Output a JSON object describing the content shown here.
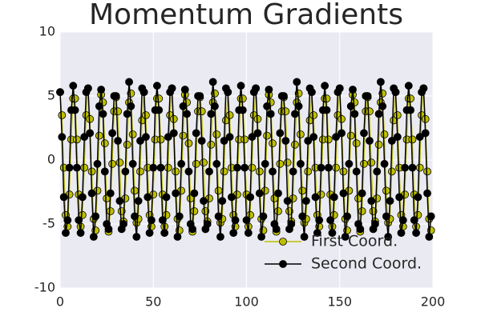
{
  "chart_data": {
    "type": "line",
    "title": "Momentum Gradients",
    "x": [
      0,
      1,
      2,
      3,
      4,
      5,
      6,
      7,
      8,
      9,
      10,
      11,
      12,
      13,
      14,
      15,
      16,
      17,
      18,
      19,
      20,
      21,
      22,
      23,
      24,
      25,
      26,
      27,
      28,
      29,
      30,
      31,
      32,
      33,
      34,
      35,
      36,
      37,
      38,
      39,
      40,
      41,
      42,
      43,
      44,
      45,
      46,
      47,
      48,
      49,
      50,
      51,
      52,
      53,
      54,
      55,
      56,
      57,
      58,
      59,
      60,
      61,
      62,
      63,
      64,
      65,
      66,
      67,
      68,
      69,
      70,
      71,
      72,
      73,
      74,
      75,
      76,
      77,
      78,
      79,
      80,
      81,
      82,
      83,
      84,
      85,
      86,
      87,
      88,
      89,
      90,
      91,
      92,
      93,
      94,
      95,
      96,
      97,
      98,
      99,
      100,
      101,
      102,
      103,
      104,
      105,
      106,
      107,
      108,
      109,
      110,
      111,
      112,
      113,
      114,
      115,
      116,
      117,
      118,
      119,
      120,
      121,
      122,
      123,
      124,
      125,
      126,
      127,
      128,
      129,
      130,
      131,
      132,
      133,
      134,
      135,
      136,
      137,
      138,
      139,
      140,
      141,
      142,
      143,
      144,
      145,
      146,
      147,
      148,
      149,
      150,
      151,
      152,
      153,
      154,
      155,
      156,
      157,
      158,
      159,
      160,
      161,
      162,
      163,
      164,
      165,
      166,
      167,
      168,
      169,
      170,
      171,
      172,
      173,
      174,
      175,
      176,
      177,
      178,
      179,
      180,
      181,
      182,
      183,
      184,
      185,
      186,
      187,
      188,
      189,
      190,
      191,
      192,
      193,
      194,
      195,
      196,
      197,
      198,
      199
    ],
    "series": [
      {
        "name": "First Coord.",
        "color": "#bfbf00",
        "values": [
          5.3,
          3.5,
          -0.6,
          -4.3,
          -5.2,
          -2.7,
          1.6,
          4.8,
          4.8,
          1.6,
          -2.7,
          -5.2,
          -4.3,
          -0.6,
          3.5,
          5.6,
          3.2,
          -0.9,
          -4.6,
          -5.5,
          -2.4,
          1.9,
          5.1,
          4.5,
          1.3,
          -3.0,
          -5.6,
          -4.0,
          -0.3,
          3.8,
          4.9,
          3.8,
          -0.2,
          -4.0,
          -4.8,
          -3.0,
          1.2,
          4.5,
          5.2,
          2.0,
          -2.4,
          -4.9,
          -4.6,
          -0.9,
          3.1,
          5.3,
          3.5,
          -0.6,
          -4.3,
          -5.2,
          -2.7,
          1.6,
          4.8,
          4.8,
          1.6,
          -2.7,
          -5.2,
          -4.3,
          -0.6,
          3.5,
          5.6,
          3.2,
          -0.9,
          -4.6,
          -5.5,
          -2.4,
          1.9,
          5.1,
          4.5,
          1.3,
          -3.0,
          -5.6,
          -4.0,
          -0.3,
          3.8,
          4.9,
          3.8,
          -0.2,
          -4.0,
          -4.8,
          -3.0,
          1.2,
          4.5,
          5.2,
          2.0,
          -2.4,
          -4.9,
          -4.6,
          -0.9,
          3.1,
          5.3,
          3.5,
          -0.6,
          -4.3,
          -5.2,
          -2.7,
          1.6,
          4.8,
          4.8,
          1.6,
          -2.7,
          -5.2,
          -4.3,
          -0.6,
          3.5,
          5.6,
          3.2,
          -0.9,
          -4.6,
          -5.5,
          -2.4,
          1.9,
          5.1,
          4.5,
          1.3,
          -3.0,
          -5.6,
          -4.0,
          -0.3,
          3.8,
          4.9,
          3.8,
          -0.2,
          -4.0,
          -4.8,
          -3.0,
          1.2,
          4.5,
          5.2,
          2.0,
          -2.4,
          -4.9,
          -4.6,
          -0.9,
          3.1,
          5.3,
          3.5,
          -0.6,
          -4.3,
          -5.2,
          -2.7,
          1.6,
          4.8,
          4.8,
          1.6,
          -2.7,
          -5.2,
          -4.3,
          -0.6,
          3.5,
          5.6,
          3.2,
          -0.9,
          -4.6,
          -5.5,
          -2.4,
          1.9,
          5.1,
          4.5,
          1.3,
          -3.0,
          -5.6,
          -4.0,
          -0.3,
          3.8,
          4.9,
          3.8,
          -0.2,
          -4.0,
          -4.8,
          -3.0,
          1.2,
          4.5,
          5.2,
          2.0,
          -2.4,
          -4.9,
          -4.6,
          -0.9,
          3.1,
          5.3,
          3.5,
          -0.6,
          -4.3,
          -5.2,
          -2.7,
          1.6,
          4.8,
          4.8,
          1.6,
          -2.7,
          -5.2,
          -4.3,
          -0.6,
          3.5,
          5.6,
          3.2,
          -0.9,
          -4.6,
          -5.5
        ]
      },
      {
        "name": "Second Coord.",
        "color": "#000000",
        "values": [
          5.3,
          1.8,
          -2.9,
          -5.7,
          -4.7,
          -0.6,
          3.9,
          5.8,
          3.9,
          -0.6,
          -4.7,
          -5.7,
          -2.9,
          1.8,
          5.3,
          5.6,
          2.1,
          -2.6,
          -6.0,
          -4.4,
          -0.3,
          4.2,
          5.5,
          3.6,
          -0.9,
          -5.0,
          -5.4,
          -2.6,
          2.1,
          5.0,
          5.0,
          1.5,
          -3.2,
          -5.4,
          -5.0,
          -0.9,
          3.6,
          6.1,
          4.2,
          -0.3,
          -4.4,
          -6.0,
          -3.2,
          1.5,
          5.6,
          5.3,
          1.8,
          -2.9,
          -5.7,
          -4.7,
          -0.6,
          3.9,
          5.8,
          3.9,
          -0.6,
          -4.7,
          -5.7,
          -2.9,
          1.8,
          5.3,
          5.6,
          2.1,
          -2.6,
          -6.0,
          -4.4,
          -0.3,
          4.2,
          5.5,
          3.6,
          -0.9,
          -5.0,
          -5.4,
          -2.6,
          2.1,
          5.0,
          5.0,
          1.5,
          -3.2,
          -5.4,
          -5.0,
          -0.9,
          3.6,
          6.1,
          4.2,
          -0.3,
          -4.4,
          -6.0,
          -3.2,
          1.5,
          5.6,
          5.3,
          1.8,
          -2.9,
          -5.7,
          -4.7,
          -0.6,
          3.9,
          5.8,
          3.9,
          -0.6,
          -4.7,
          -5.7,
          -2.9,
          1.8,
          5.3,
          5.6,
          2.1,
          -2.6,
          -6.0,
          -4.4,
          -0.3,
          4.2,
          5.5,
          3.6,
          -0.9,
          -5.0,
          -5.4,
          -2.6,
          2.1,
          5.0,
          5.0,
          1.5,
          -3.2,
          -5.4,
          -5.0,
          -0.9,
          3.6,
          6.1,
          4.2,
          -0.3,
          -4.4,
          -6.0,
          -3.2,
          1.5,
          5.6,
          5.3,
          1.8,
          -2.9,
          -5.7,
          -4.7,
          -0.6,
          3.9,
          5.8,
          3.9,
          -0.6,
          -4.7,
          -5.7,
          -2.9,
          1.8,
          5.3,
          5.6,
          2.1,
          -2.6,
          -6.0,
          -4.4,
          -0.3,
          4.2,
          5.5,
          3.6,
          -0.9,
          -5.0,
          -5.4,
          -2.6,
          2.1,
          5.0,
          5.0,
          1.5,
          -3.2,
          -5.4,
          -5.0,
          -0.9,
          3.6,
          6.1,
          4.2,
          -0.3,
          -4.4,
          -6.0,
          -3.2,
          1.5,
          5.6,
          5.3,
          1.8,
          -2.9,
          -5.7,
          -4.7,
          -0.6,
          3.9,
          5.8,
          3.9,
          -0.6,
          -4.7,
          -5.7,
          -2.9,
          1.8,
          5.3,
          5.6,
          2.1,
          -2.6,
          -6.0,
          -4.4
        ]
      }
    ],
    "xlim": [
      0,
      200
    ],
    "xticks": [
      0,
      50,
      100,
      150,
      200
    ],
    "ylim": [
      -10,
      10
    ],
    "yticks": [
      -10,
      -5,
      0,
      5,
      10
    ],
    "grid": true,
    "legend": "lower right"
  }
}
